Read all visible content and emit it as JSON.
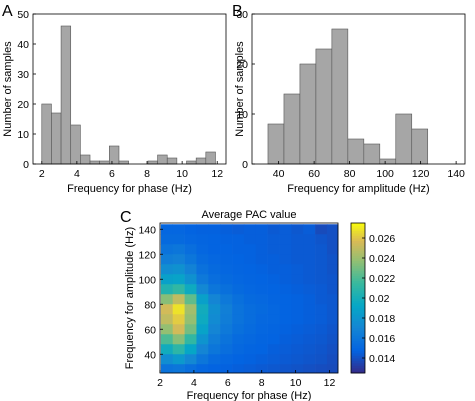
{
  "chart_data": [
    {
      "panel": "A",
      "type": "bar",
      "xlabel": "Frequency for phase (Hz)",
      "ylabel": "Number of samples",
      "xlim": [
        1.5,
        12.5
      ],
      "ylim": [
        0,
        50
      ],
      "xticks": [
        "2",
        "4",
        "6",
        "8",
        "10",
        "12"
      ],
      "yticks": [
        "0",
        "10",
        "20",
        "30",
        "40",
        "50"
      ],
      "bin_width": 0.55,
      "x": [
        2.0,
        2.55,
        3.1,
        3.65,
        4.2,
        4.75,
        5.3,
        5.85,
        6.4,
        6.95,
        7.5,
        8.05,
        8.6,
        9.15,
        9.7,
        10.25,
        10.8,
        11.35,
        11.9
      ],
      "values": [
        20,
        17,
        46,
        13,
        3,
        1,
        1,
        6,
        1,
        0,
        0,
        1,
        3,
        2,
        0,
        1,
        2,
        4,
        0
      ],
      "color": "#a6a6a6"
    },
    {
      "panel": "B",
      "type": "bar",
      "xlabel": "Frequency for amplitude (Hz)",
      "ylabel": "Number of samples",
      "xlim": [
        25,
        145
      ],
      "ylim": [
        0,
        30
      ],
      "xticks": [
        "40",
        "60",
        "80",
        "100",
        "120",
        "140"
      ],
      "yticks": [
        "0",
        "10",
        "20",
        "30"
      ],
      "bin_width": 9.0,
      "x": [
        34,
        43,
        52,
        61,
        70,
        79,
        88,
        97,
        106,
        115,
        124,
        133
      ],
      "values": [
        8,
        14,
        20,
        23,
        27,
        5,
        4,
        1,
        10,
        7,
        0,
        0
      ],
      "color": "#a6a6a6"
    },
    {
      "panel": "C",
      "type": "heatmap",
      "title": "Average PAC value",
      "xlabel": "Frequency for phase (Hz)",
      "ylabel": "Frequency for amplitude (Hz)",
      "xlim": [
        2,
        12.5
      ],
      "ylim": [
        25,
        145
      ],
      "xticks": [
        "2",
        "4",
        "6",
        "8",
        "10",
        "12"
      ],
      "yticks": [
        "40",
        "60",
        "80",
        "100",
        "120",
        "140"
      ],
      "colorbar_ticks": [
        "0.014",
        "0.016",
        "0.018",
        "0.02",
        "0.022",
        "0.024",
        "0.026"
      ],
      "clim": [
        0.0125,
        0.0275
      ],
      "x_centers": [
        2.4,
        3.1,
        3.8,
        4.5,
        5.2,
        5.9,
        6.6,
        7.3,
        8.0,
        8.7,
        9.4,
        10.1,
        10.8,
        11.5,
        12.2
      ],
      "y_centers": [
        140,
        132,
        124,
        116,
        108,
        100,
        92,
        84,
        76,
        68,
        60,
        52,
        44,
        36,
        28
      ],
      "z": [
        [
          0.015,
          0.015,
          0.0148,
          0.0147,
          0.0147,
          0.0146,
          0.0145,
          0.0146,
          0.0146,
          0.0144,
          0.0145,
          0.0143,
          0.0145,
          0.0138,
          0.014
        ],
        [
          0.0152,
          0.0152,
          0.015,
          0.0149,
          0.0148,
          0.0147,
          0.0147,
          0.0146,
          0.0146,
          0.0145,
          0.0145,
          0.0144,
          0.0144,
          0.0142,
          0.014
        ],
        [
          0.0158,
          0.016,
          0.0155,
          0.015,
          0.0148,
          0.0148,
          0.0147,
          0.0147,
          0.0146,
          0.0145,
          0.0145,
          0.0144,
          0.0144,
          0.0143,
          0.014
        ],
        [
          0.0165,
          0.0167,
          0.016,
          0.0153,
          0.015,
          0.0149,
          0.0148,
          0.0147,
          0.0146,
          0.0146,
          0.0145,
          0.0144,
          0.0144,
          0.0143,
          0.0141
        ],
        [
          0.0175,
          0.0178,
          0.0168,
          0.0157,
          0.0152,
          0.015,
          0.0149,
          0.0148,
          0.0147,
          0.0146,
          0.0146,
          0.0145,
          0.0144,
          0.0143,
          0.0141
        ],
        [
          0.0188,
          0.019,
          0.0178,
          0.0162,
          0.0155,
          0.0152,
          0.015,
          0.0149,
          0.0148,
          0.0147,
          0.0146,
          0.0145,
          0.0144,
          0.0143,
          0.0142
        ],
        [
          0.0205,
          0.0212,
          0.0196,
          0.0172,
          0.016,
          0.0156,
          0.0152,
          0.015,
          0.0149,
          0.0148,
          0.0147,
          0.0146,
          0.0145,
          0.0144,
          0.0142
        ],
        [
          0.0235,
          0.025,
          0.0225,
          0.0188,
          0.017,
          0.0162,
          0.0156,
          0.0152,
          0.0151,
          0.0149,
          0.0148,
          0.0147,
          0.0146,
          0.0144,
          0.0143
        ],
        [
          0.0255,
          0.0268,
          0.0242,
          0.0198,
          0.0176,
          0.0166,
          0.0158,
          0.0154,
          0.0152,
          0.015,
          0.0148,
          0.0147,
          0.0146,
          0.0145,
          0.0143
        ],
        [
          0.025,
          0.0262,
          0.0238,
          0.0196,
          0.0174,
          0.0165,
          0.0158,
          0.0154,
          0.0151,
          0.015,
          0.0148,
          0.0147,
          0.0146,
          0.0145,
          0.0143
        ],
        [
          0.0238,
          0.0255,
          0.023,
          0.019,
          0.017,
          0.0162,
          0.0156,
          0.0153,
          0.015,
          0.0149,
          0.0147,
          0.0146,
          0.0145,
          0.0144,
          0.0142
        ],
        [
          0.022,
          0.0235,
          0.0212,
          0.018,
          0.0165,
          0.0158,
          0.0153,
          0.0151,
          0.0149,
          0.0148,
          0.0146,
          0.0145,
          0.0144,
          0.0143,
          0.0141
        ],
        [
          0.0198,
          0.021,
          0.0192,
          0.017,
          0.016,
          0.0155,
          0.0151,
          0.0149,
          0.0148,
          0.0146,
          0.0145,
          0.0144,
          0.0143,
          0.0142,
          0.014
        ],
        [
          0.0175,
          0.0183,
          0.0172,
          0.016,
          0.0153,
          0.015,
          0.0148,
          0.0147,
          0.0146,
          0.0145,
          0.0144,
          0.0143,
          0.0142,
          0.0141,
          0.0139
        ],
        [
          0.0158,
          0.016,
          0.0155,
          0.015,
          0.0148,
          0.0147,
          0.0146,
          0.0145,
          0.0144,
          0.0143,
          0.0142,
          0.0141,
          0.014,
          0.0139,
          0.0138
        ]
      ]
    }
  ]
}
